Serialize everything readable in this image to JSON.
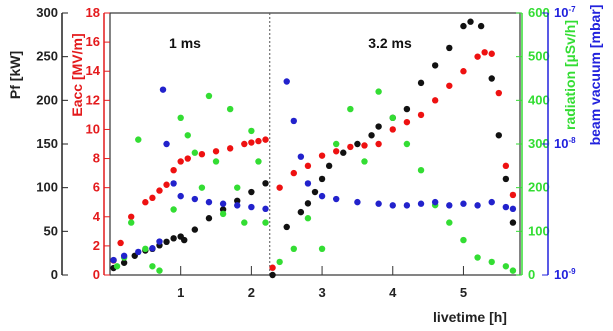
{
  "chart_data": {
    "type": "scatter",
    "title": "",
    "xlabel": "livetime [h]",
    "x_ticks": [
      "1",
      "2",
      "3",
      "4",
      "5"
    ],
    "xlim": [
      0,
      5.8
    ],
    "annotations": [
      "1 ms",
      "3.2 ms"
    ],
    "divider_x": 2.26,
    "axes": [
      {
        "id": "pf",
        "label": "Pf [kW]",
        "color": "#222222",
        "side": "left",
        "ticks": [
          "0",
          "50",
          "100",
          "150",
          "200",
          "250",
          "300"
        ],
        "ylim": [
          0,
          300
        ]
      },
      {
        "id": "eacc",
        "label": "Eacc [MV/m]",
        "color": "#e41a1c",
        "side": "left",
        "ticks": [
          "0",
          "2",
          "4",
          "6",
          "8",
          "10",
          "12",
          "14",
          "16",
          "18"
        ],
        "ylim": [
          0,
          18
        ]
      },
      {
        "id": "rad",
        "label": "radiation [µSv/h]",
        "color": "#33dd33",
        "side": "right",
        "ticks": [
          "0",
          "100",
          "200",
          "300",
          "400",
          "500",
          "600"
        ],
        "ylim": [
          0,
          600
        ]
      },
      {
        "id": "vac",
        "label": "beam vacuum [mbar]",
        "color": "#2222dd",
        "side": "right",
        "scale": "log",
        "ticks": [
          "10-9",
          "10-8",
          "10-7"
        ],
        "ylim": [
          1e-09,
          1e-07
        ]
      }
    ],
    "series": [
      {
        "axis": "pf",
        "color": "#111111",
        "x": [
          0.05,
          0.2,
          0.35,
          0.5,
          0.6,
          0.7,
          0.8,
          0.9,
          1.0,
          1.05,
          1.2,
          1.4,
          1.6,
          1.8,
          2.0,
          2.2,
          2.3,
          2.5,
          2.7,
          2.8,
          2.9,
          3.0,
          3.1,
          3.3,
          3.5,
          3.7,
          3.8,
          4.0,
          4.2,
          4.4,
          4.6,
          4.8,
          5.0,
          5.1,
          5.25,
          5.4,
          5.5,
          5.6,
          5.7
        ],
        "y": [
          8,
          14,
          22,
          28,
          30,
          34,
          38,
          42,
          44,
          40,
          52,
          65,
          75,
          85,
          95,
          105,
          0,
          55,
          72,
          82,
          95,
          110,
          125,
          140,
          150,
          160,
          170,
          180,
          190,
          220,
          240,
          260,
          285,
          290,
          285,
          225,
          160,
          110,
          60
        ]
      },
      {
        "axis": "eacc",
        "color": "#ee1111",
        "x": [
          0.05,
          0.15,
          0.3,
          0.5,
          0.6,
          0.7,
          0.8,
          0.9,
          1.0,
          1.1,
          1.3,
          1.5,
          1.7,
          1.9,
          2.0,
          2.1,
          2.2,
          2.3,
          2.4,
          2.6,
          2.8,
          3.0,
          3.2,
          3.4,
          3.6,
          3.8,
          4.0,
          4.2,
          4.4,
          4.6,
          4.8,
          5.0,
          5.2,
          5.3,
          5.4,
          5.5,
          5.6,
          5.7
        ],
        "y": [
          1,
          2.2,
          4.0,
          5.0,
          5.3,
          5.8,
          6.2,
          7.2,
          7.8,
          8.0,
          8.3,
          8.5,
          8.7,
          9.0,
          9.1,
          9.2,
          9.3,
          0.5,
          6.0,
          7.0,
          7.5,
          8.2,
          8.5,
          8.8,
          8.9,
          9.0,
          10.0,
          10.5,
          11.0,
          12.0,
          13.0,
          14.0,
          15.0,
          15.3,
          15.2,
          12.5,
          7.5,
          5.5
        ]
      },
      {
        "axis": "rad",
        "color": "#33dd33",
        "x": [
          0.1,
          0.2,
          0.3,
          0.4,
          0.5,
          0.6,
          0.7,
          0.9,
          1.0,
          1.1,
          1.2,
          1.3,
          1.4,
          1.5,
          1.6,
          1.7,
          1.8,
          1.9,
          2.0,
          2.1,
          2.2,
          2.4,
          2.6,
          2.8,
          3.0,
          3.2,
          3.4,
          3.6,
          3.8,
          4.0,
          4.2,
          4.4,
          4.6,
          4.8,
          5.0,
          5.2,
          5.4,
          5.6,
          5.7
        ],
        "y": [
          20,
          40,
          120,
          310,
          60,
          20,
          10,
          150,
          360,
          320,
          280,
          200,
          410,
          260,
          140,
          380,
          200,
          120,
          330,
          260,
          120,
          30,
          60,
          130,
          60,
          300,
          380,
          260,
          420,
          360,
          300,
          240,
          160,
          120,
          80,
          40,
          30,
          20,
          10
        ]
      },
      {
        "axis": "vac",
        "color": "#2222cc",
        "x": [
          0.05,
          0.2,
          0.4,
          0.6,
          0.7,
          0.75,
          0.8,
          0.9,
          1.0,
          1.2,
          1.4,
          1.6,
          1.8,
          2.0,
          2.2,
          2.5,
          2.6,
          2.7,
          2.8,
          3.0,
          3.2,
          3.5,
          3.8,
          4.0,
          4.2,
          4.4,
          4.6,
          4.8,
          5.0,
          5.2,
          5.4,
          5.6,
          5.7
        ],
        "y": [
          1.3e-09,
          1.4e-09,
          1.5e-09,
          1.6e-09,
          1.8e-09,
          2.6e-08,
          1e-08,
          5e-09,
          4e-09,
          3.8e-09,
          3.6e-09,
          3.5e-09,
          3.4e-09,
          3.3e-09,
          3.2e-09,
          3e-08,
          1.5e-08,
          8e-09,
          5e-09,
          4e-09,
          3.8e-09,
          3.6e-09,
          3.5e-09,
          3.4e-09,
          3.4e-09,
          3.5e-09,
          3.6e-09,
          3.4e-09,
          3.5e-09,
          3.4e-09,
          3.6e-09,
          3.3e-09,
          3.2e-09
        ]
      }
    ]
  }
}
